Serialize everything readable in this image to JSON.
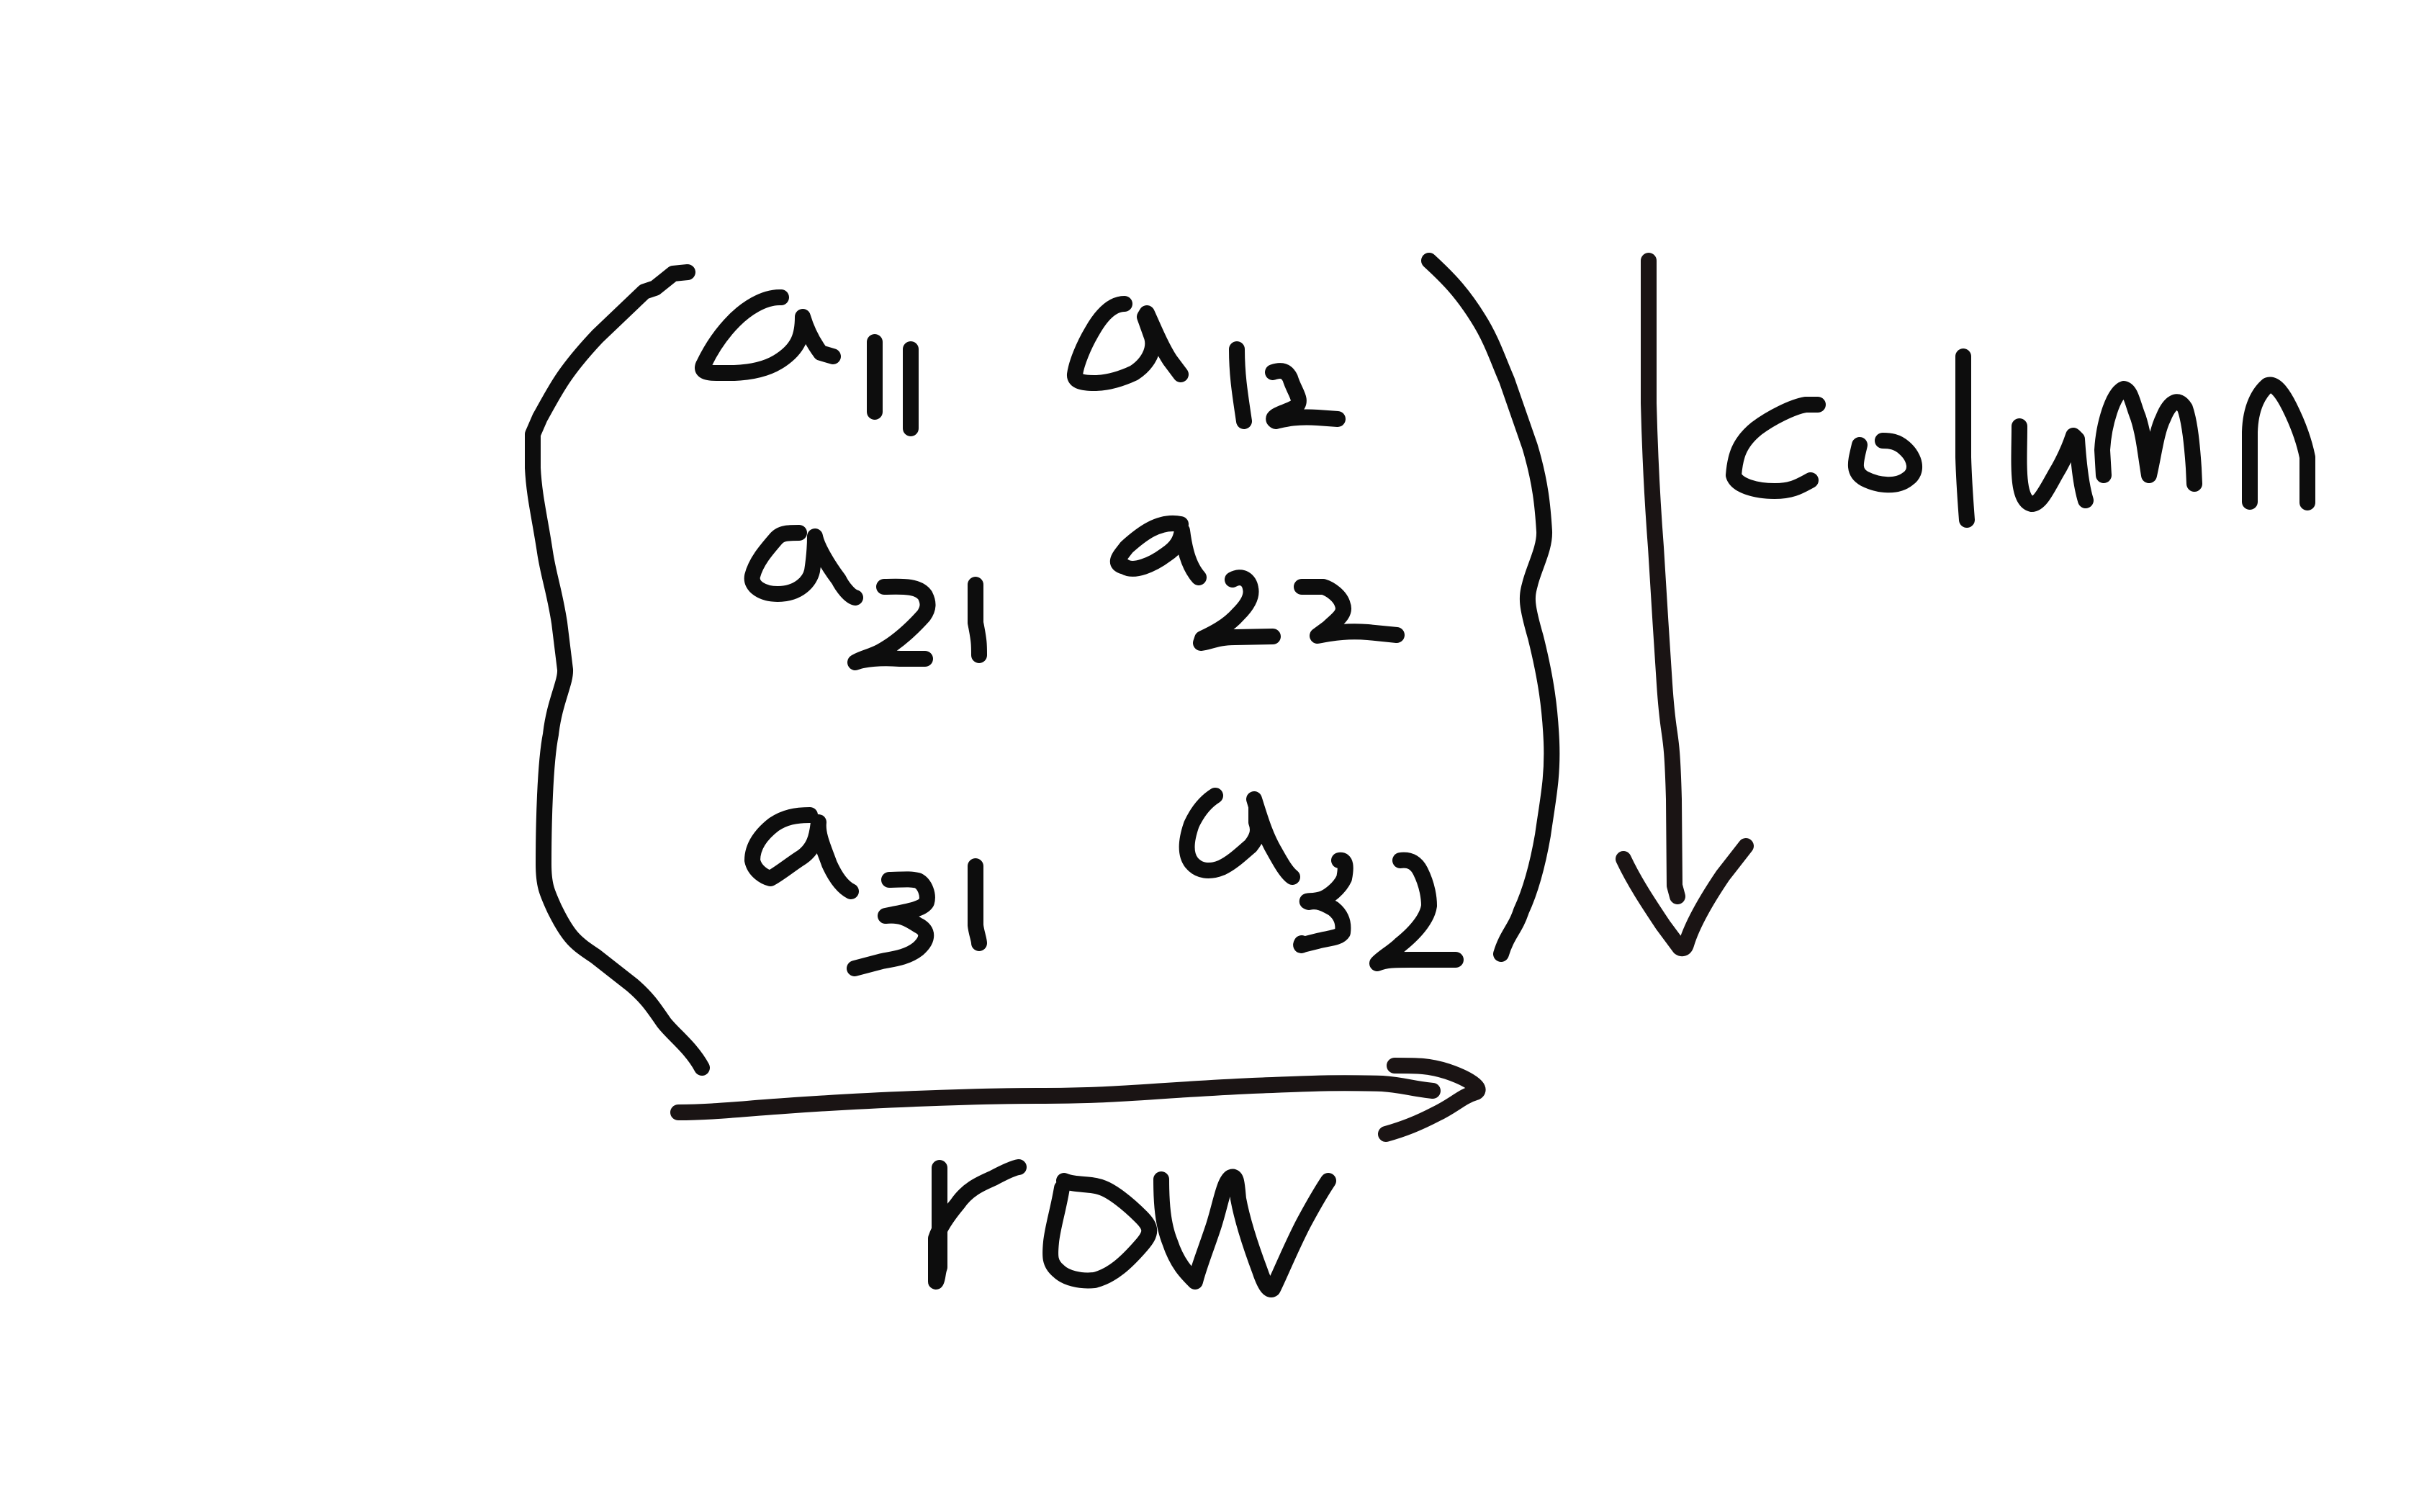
{
  "diagram": {
    "style": "handwritten-ink",
    "colors": {
      "ink": "#0d0d0d",
      "background": "#ffffff"
    },
    "matrix": {
      "entries": [
        [
          "a11",
          "a12"
        ],
        [
          "a21",
          "a22"
        ],
        [
          "a31",
          "a32"
        ]
      ]
    },
    "annotations": {
      "row_label": "row",
      "column_label": "column"
    }
  }
}
